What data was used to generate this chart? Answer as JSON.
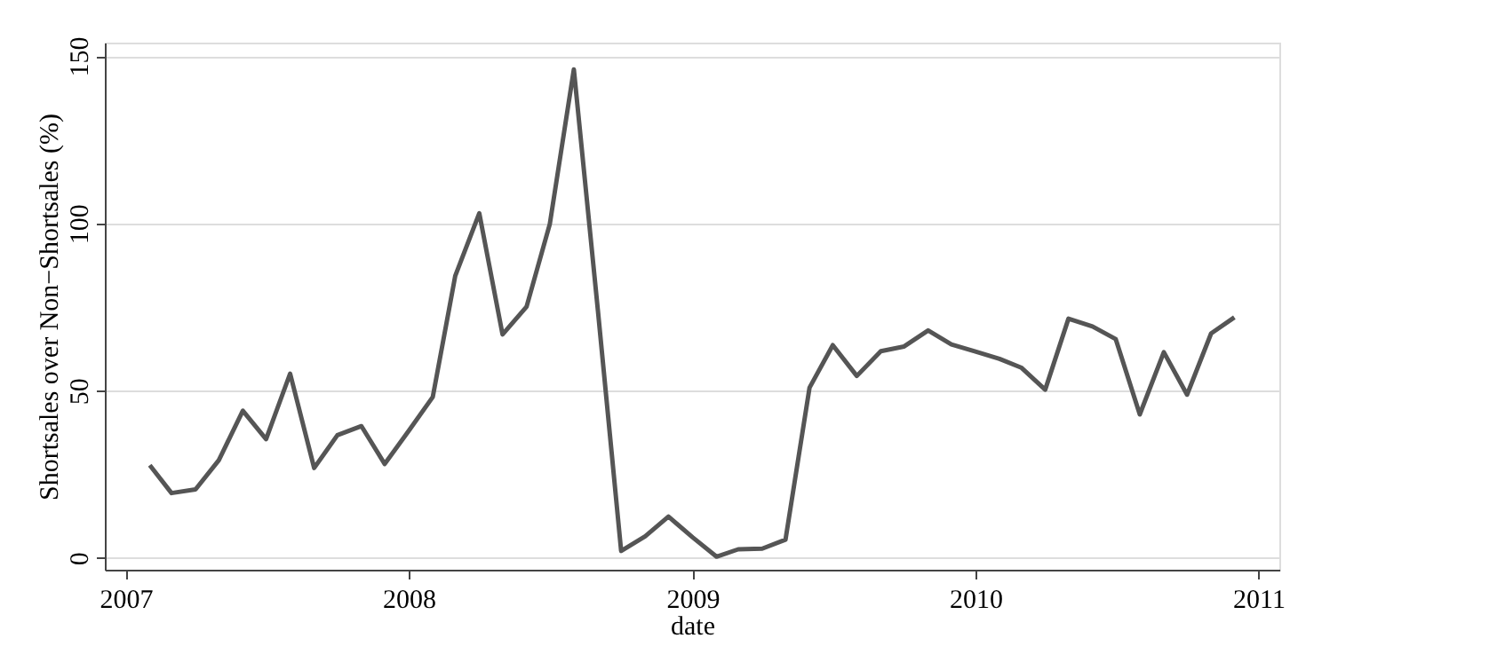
{
  "chart_data": {
    "type": "line",
    "xlabel": "date",
    "ylabel": "Shortsales over Non−Shortsales (%)",
    "x": [
      "2007-02",
      "2007-03",
      "2007-04",
      "2007-05",
      "2007-06",
      "2007-07",
      "2007-08",
      "2007-09",
      "2007-10",
      "2007-11",
      "2007-12",
      "2008-01",
      "2008-02",
      "2008-03",
      "2008-04",
      "2008-05",
      "2008-06",
      "2008-07",
      "2008-08",
      "2008-09",
      "2008-10",
      "2008-11",
      "2008-12",
      "2009-01",
      "2009-02",
      "2009-03",
      "2009-04",
      "2009-05",
      "2009-06",
      "2009-07",
      "2009-08",
      "2009-09",
      "2009-10",
      "2009-11",
      "2009-12",
      "2010-01",
      "2010-02",
      "2010-03",
      "2010-04",
      "2010-05",
      "2010-06",
      "2010-07",
      "2010-08",
      "2010-09",
      "2010-10",
      "2010-11",
      "2010-12"
    ],
    "series": [
      {
        "color": "#555555",
        "values": [
          27.7,
          19.4,
          20.5,
          29.2,
          44,
          35.5,
          55.1,
          26.9,
          36.7,
          39.4,
          28.1,
          38,
          48.1,
          84.3,
          103,
          66.8,
          75.1,
          99.8,
          146,
          74,
          2.1,
          6.5,
          12.4,
          6.2,
          0.4,
          2.6,
          2.8,
          5.5,
          50.9,
          63.6,
          54.4,
          61.8,
          63.2,
          68,
          63.8,
          61.7,
          59.5,
          56.9,
          50.3,
          71.5,
          69.2,
          65.4,
          42.9,
          61.5,
          48.8,
          67.1,
          71.9
        ]
      }
    ],
    "xlim": [
      "2006-12-05",
      "2011-01-28"
    ],
    "xticks": [
      {
        "value": "2007-01-01",
        "label": "2007"
      },
      {
        "value": "2008-01-01",
        "label": "2008"
      },
      {
        "value": "2009-01-01",
        "label": "2009"
      },
      {
        "value": "2010-01-01",
        "label": "2010"
      },
      {
        "value": "2011-01-01",
        "label": "2011"
      }
    ],
    "ylim": [
      -3.5,
      154
    ],
    "yticks": [
      0,
      50,
      100,
      150
    ],
    "grid": "y",
    "marker": "none",
    "line_style": "solid"
  }
}
